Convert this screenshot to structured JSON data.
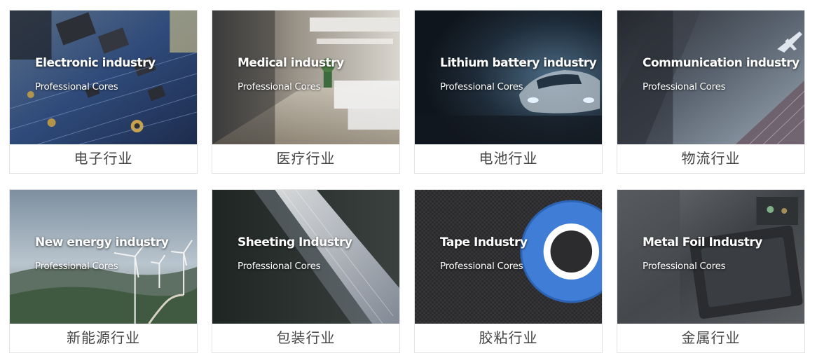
{
  "cards": [
    {
      "title_en": "Electronic industry",
      "subtitle_en": "Professional Cores",
      "caption_cn": "电子行业",
      "image": "circuit-board-image"
    },
    {
      "title_en": "Medical industry",
      "subtitle_en": "Professional Cores",
      "caption_cn": "医疗行业",
      "image": "hospital-ward-image"
    },
    {
      "title_en": "Lithium battery industry",
      "subtitle_en": "Professional Cores",
      "caption_cn": "电池行业",
      "image": "sports-car-image"
    },
    {
      "title_en": "Communication industry",
      "subtitle_en": "Professional Cores",
      "caption_cn": "物流行业",
      "image": "airplane-skyscraper-image"
    },
    {
      "title_en": "New energy industry",
      "subtitle_en": "Professional Cores",
      "caption_cn": "新能源行业",
      "image": "wind-turbines-image"
    },
    {
      "title_en": "Sheeting Industry",
      "subtitle_en": "Professional Cores",
      "caption_cn": "包装行业",
      "image": "film-roll-image"
    },
    {
      "title_en": "Tape Industry",
      "subtitle_en": "Professional Cores",
      "caption_cn": "胶粘行业",
      "image": "blue-tape-roll-image"
    },
    {
      "title_en": "Metal Foil Industry",
      "subtitle_en": "Professional Cores",
      "caption_cn": "金属行业",
      "image": "laptop-internals-image"
    }
  ],
  "colors": {
    "caption_text": "#444444",
    "card_border": "#e3e3e3",
    "overlay_text": "#ffffff"
  }
}
